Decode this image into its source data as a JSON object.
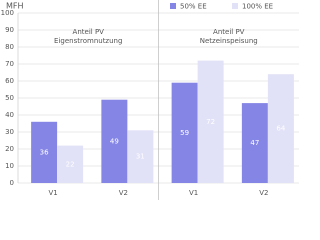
{
  "chart_data": {
    "type": "bar",
    "title": "MFH",
    "categories": [
      "V1",
      "V2",
      "V1",
      "V2"
    ],
    "groups": [
      [
        "Anteil PV",
        "Eigenstromnutzung"
      ],
      [
        "Anteil PV",
        "Netzeinspeisung"
      ]
    ],
    "series": [
      {
        "name": "50% EE",
        "color": "#8585e6",
        "values": [
          36,
          49,
          59,
          47
        ]
      },
      {
        "name": "100% EE",
        "color": "#e1e1f7",
        "values": [
          22,
          31,
          72,
          64
        ]
      }
    ],
    "ylim": [
      0,
      100
    ],
    "yticks": [
      0,
      10,
      20,
      30,
      40,
      50,
      60,
      70,
      80,
      90,
      100
    ],
    "grid": true
  }
}
